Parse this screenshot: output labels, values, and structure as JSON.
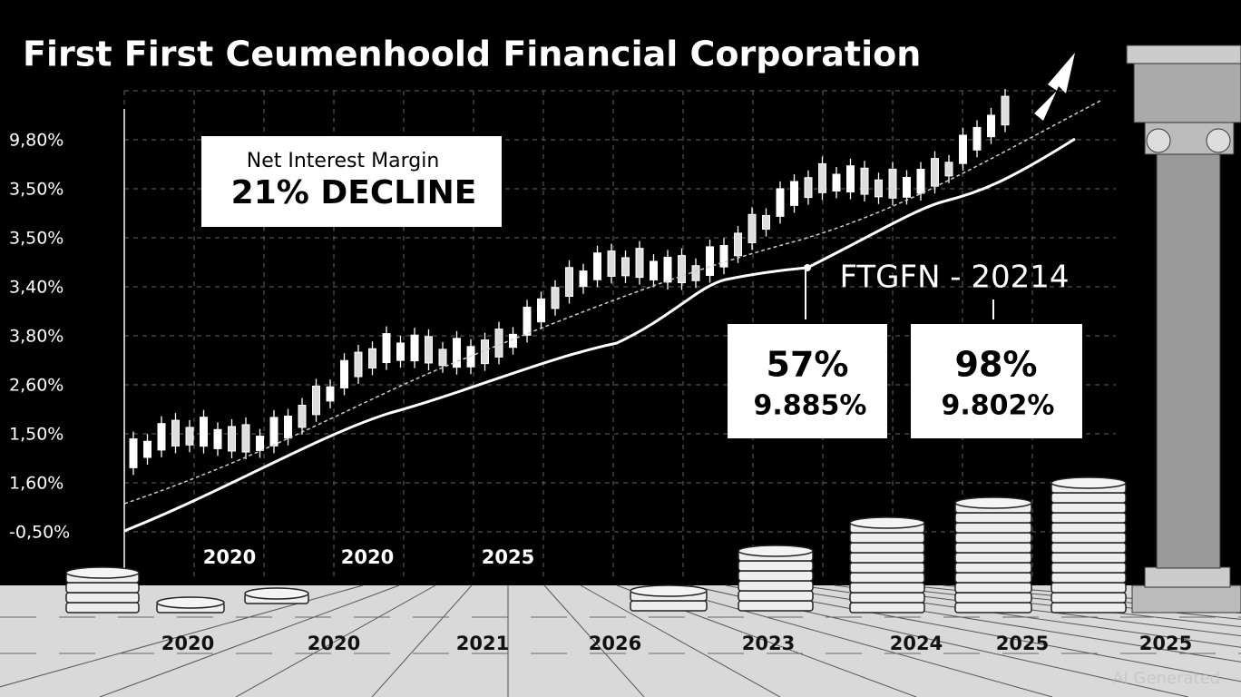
{
  "title": "First First Ceumenhoold Financial Corporation",
  "y_axis_labels": [
    "9,80%",
    "3,50%",
    "3,50%",
    "3,40%",
    "3,80%",
    "2,60%",
    "1,50%",
    "1,60%",
    "-0,50%"
  ],
  "callout": {
    "label": "Net Interest Margin",
    "headline": "21% DECLINE"
  },
  "ticker": "FTGFN - 20214",
  "stat_boxes": [
    {
      "value": "57%",
      "detail": "9.885%"
    },
    {
      "value": "98%",
      "detail": "9.802%"
    }
  ],
  "chart_x_labels": [
    "2020",
    "2020",
    "2025"
  ],
  "floor_labels": [
    "2020",
    "2020",
    "2021",
    "2026",
    "2023",
    "2024",
    "2025",
    "2025"
  ],
  "watermark": "AI Generated"
}
